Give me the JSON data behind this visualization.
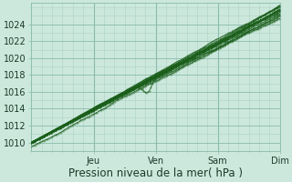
{
  "xlabel": "Pression niveau de la mer( hPa )",
  "bg_color": "#cce8dc",
  "plot_bg_color": "#cce8dc",
  "grid_major_color": "#88bbaa",
  "grid_minor_color": "#aad4c4",
  "line_color": "#1a5e1a",
  "ylim": [
    1009.0,
    1026.5
  ],
  "yticks": [
    1010,
    1012,
    1014,
    1016,
    1018,
    1020,
    1022,
    1024
  ],
  "xlim": [
    0,
    1.0
  ],
  "day_labels": [
    "Jeu",
    "Ven",
    "Sam",
    "Dim"
  ],
  "day_positions": [
    0.25,
    0.5,
    0.75,
    1.0
  ],
  "xlabel_fontsize": 8.5,
  "tick_fontsize": 7
}
